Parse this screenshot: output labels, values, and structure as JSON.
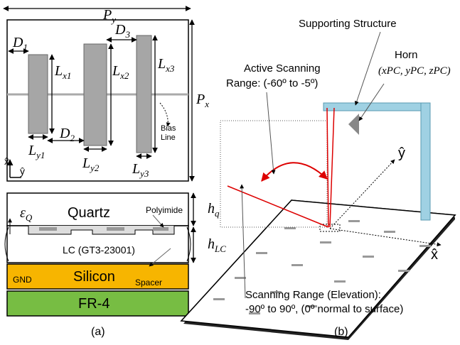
{
  "panel_a": {
    "period_y": {
      "main": "P",
      "sub": "y"
    },
    "period_x": {
      "main": "P",
      "sub": "x"
    },
    "gaps": [
      {
        "main": "D",
        "sub": "1"
      },
      {
        "main": "D",
        "sub": "2"
      },
      {
        "main": "D",
        "sub": "3"
      }
    ],
    "lengths_x": [
      {
        "main": "L",
        "sub": "x1"
      },
      {
        "main": "L",
        "sub": "x2"
      },
      {
        "main": "L",
        "sub": "x3"
      }
    ],
    "lengths_y": [
      {
        "main": "L",
        "sub": "y1"
      },
      {
        "main": "L",
        "sub": "y2"
      },
      {
        "main": "L",
        "sub": "y3"
      }
    ],
    "bias_line": [
      "Bias",
      "Line"
    ],
    "axis_x": "x̂",
    "axis_y": "ŷ",
    "permittivity": {
      "main": "ε",
      "sub": "Q"
    },
    "quartz": "Quartz",
    "polyimide": "Polyimide",
    "h_q": {
      "main": "h",
      "sub": "q"
    },
    "lc": "LC (GT3-23001)",
    "h_lc": {
      "main": "h",
      "sub": "LC"
    },
    "gnd": "GND",
    "silicon": "Silicon",
    "spacer": "Spacer",
    "fr4": "FR-4",
    "caption": "(a)"
  },
  "panel_b": {
    "supporting_structure": "Supporting Structure",
    "horn": "Horn",
    "horn_position": "(xPC, yPC, zPC)",
    "active_range": [
      "Active Scanning",
      "Range: (-60º to -5º)"
    ],
    "axis_y": "ŷ",
    "axis_x": "x̂",
    "scanning_range": [
      "Scanning Range (Elevation):",
      "-90º to 90º, (0º normal to surface)"
    ],
    "caption": "(b)"
  }
}
